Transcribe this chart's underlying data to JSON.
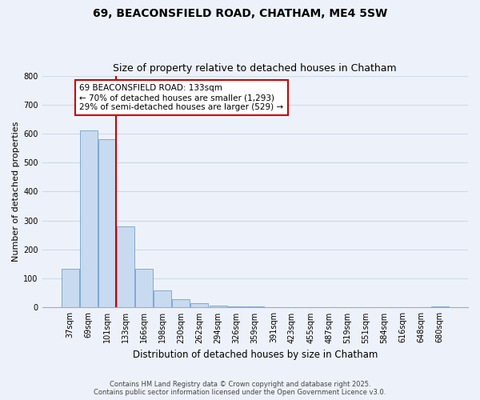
{
  "title": "69, BEACONSFIELD ROAD, CHATHAM, ME4 5SW",
  "subtitle": "Size of property relative to detached houses in Chatham",
  "xlabel": "Distribution of detached houses by size in Chatham",
  "ylabel": "Number of detached properties",
  "bar_labels": [
    "37sqm",
    "69sqm",
    "101sqm",
    "133sqm",
    "166sqm",
    "198sqm",
    "230sqm",
    "262sqm",
    "294sqm",
    "326sqm",
    "359sqm",
    "391sqm",
    "423sqm",
    "455sqm",
    "487sqm",
    "519sqm",
    "551sqm",
    "584sqm",
    "616sqm",
    "648sqm",
    "680sqm"
  ],
  "bar_values": [
    135,
    610,
    580,
    280,
    135,
    58,
    30,
    15,
    8,
    5,
    5,
    0,
    0,
    0,
    0,
    0,
    0,
    0,
    0,
    0,
    3
  ],
  "bar_color": "#c8daf0",
  "bar_edge_color": "#7eaad4",
  "vline_x_idx": 3,
  "vline_color": "#cc0000",
  "ylim": [
    0,
    800
  ],
  "yticks": [
    0,
    100,
    200,
    300,
    400,
    500,
    600,
    700,
    800
  ],
  "annotation_text": "69 BEACONSFIELD ROAD: 133sqm\n← 70% of detached houses are smaller (1,293)\n29% of semi-detached houses are larger (529) →",
  "annotation_box_color": "#ffffff",
  "annotation_box_edge": "#cc0000",
  "footer_line1": "Contains HM Land Registry data © Crown copyright and database right 2025.",
  "footer_line2": "Contains public sector information licensed under the Open Government Licence v3.0.",
  "background_color": "#edf2fa",
  "grid_color": "#d0d8e8",
  "title_fontsize": 10,
  "subtitle_fontsize": 9,
  "xlabel_fontsize": 8.5,
  "ylabel_fontsize": 8,
  "tick_fontsize": 7,
  "footer_fontsize": 6,
  "ann_fontsize": 7.5
}
